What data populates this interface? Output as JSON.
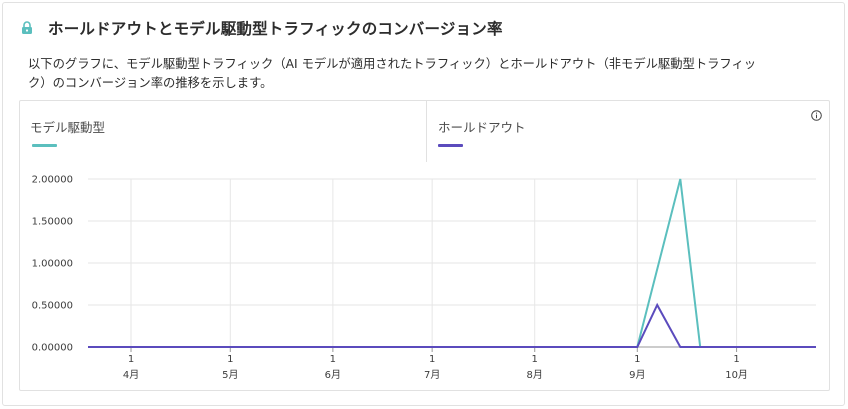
{
  "title": "ホールドアウトとモデル駆動型トラフィックのコンバージョン率",
  "description": "以下のグラフに、モデル駆動型トラフィック（AI モデルが適用されたトラフィック）とホールドアウト（非モデル駆動型トラフィック）のコンバージョン率の推移を示します。",
  "icons": {
    "lock": "lock-icon",
    "info": "info-icon"
  },
  "colors": {
    "model": "#5bbfbe",
    "holdout": "#5b4bbd",
    "grid": "#e6e6e6",
    "baseline": "#9a9a9a"
  },
  "legend": [
    {
      "label": "モデル駆動型",
      "color": "#5bbfbe"
    },
    {
      "label": "ホールドアウト",
      "color": "#5b4bbd"
    }
  ],
  "chart_data": {
    "type": "line",
    "y_tick_labels": [
      "0.00000",
      "0.50000",
      "1.00000",
      "1.50000",
      "2.00000"
    ],
    "ylim": [
      0,
      2
    ],
    "x_day_labels": [
      "1",
      "1",
      "1",
      "1",
      "1",
      "1",
      "1"
    ],
    "x_month_labels": [
      "4月",
      "5月",
      "6月",
      "7月",
      "8月",
      "9月",
      "10月"
    ],
    "x_range": [
      "2024-03-19",
      "2024-10-25"
    ],
    "grid": true,
    "series": [
      {
        "name": "モデル駆動型",
        "color": "#5bbfbe",
        "points": [
          [
            "2024-03-19",
            0
          ],
          [
            "2024-09-01",
            0
          ],
          [
            "2024-09-14",
            2.0
          ],
          [
            "2024-09-20",
            0
          ],
          [
            "2024-10-25",
            0
          ]
        ]
      },
      {
        "name": "ホールドアウト",
        "color": "#5b4bbd",
        "points": [
          [
            "2024-03-19",
            0
          ],
          [
            "2024-09-01",
            0
          ],
          [
            "2024-09-07",
            0.5
          ],
          [
            "2024-09-14",
            0
          ],
          [
            "2024-10-25",
            0
          ]
        ]
      }
    ]
  }
}
